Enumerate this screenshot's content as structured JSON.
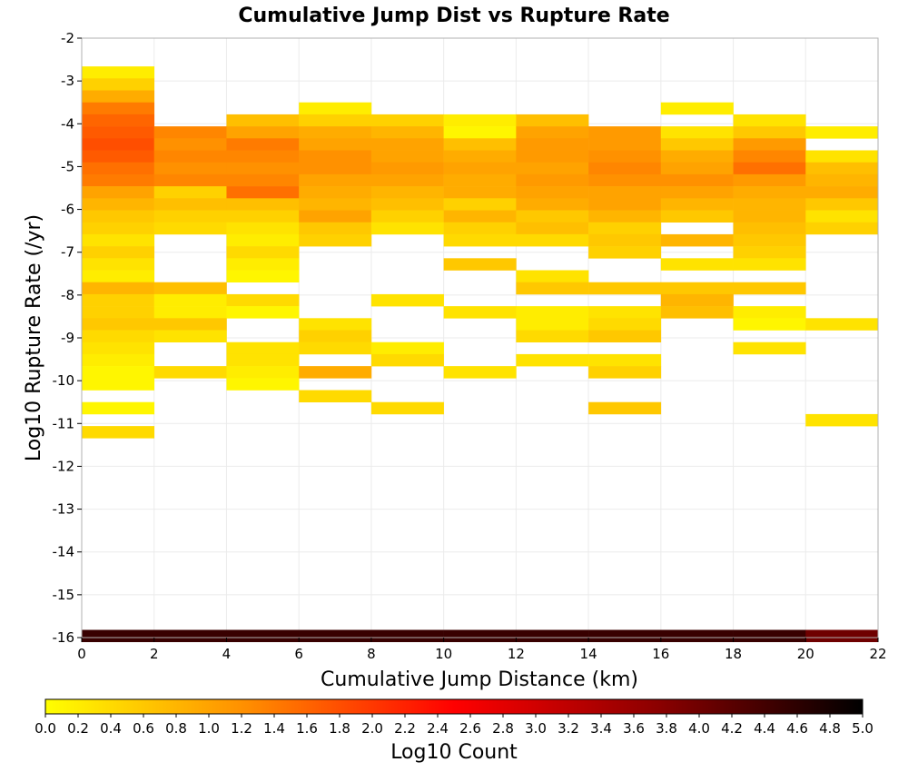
{
  "chart_data": {
    "type": "heatmap",
    "title": "Cumulative Jump Dist vs Rupture Rate",
    "xlabel": "Cumulative Jump Distance (km)",
    "ylabel": "Log10 Rupture Rate (/yr)",
    "xlim": [
      0,
      22
    ],
    "ylim": [
      -16,
      -2
    ],
    "xticks": [
      "0",
      "2",
      "4",
      "6",
      "8",
      "10",
      "12",
      "14",
      "16",
      "18",
      "20",
      "22"
    ],
    "yticks": [
      "-2",
      "-3",
      "-4",
      "-5",
      "-6",
      "-7",
      "-8",
      "-9",
      "-10",
      "-11",
      "-12",
      "-13",
      "-14",
      "-15",
      "-16"
    ],
    "grid": true,
    "x_bin_width": 2,
    "y_bin_height": 0.28,
    "colorbar": {
      "label": "Log10 Count",
      "range": [
        0,
        5
      ],
      "ticks": [
        "0.0",
        "0.2",
        "0.4",
        "0.6",
        "0.8",
        "1.0",
        "1.2",
        "1.4",
        "1.6",
        "1.8",
        "2.0",
        "2.2",
        "2.4",
        "2.6",
        "2.8",
        "3.0",
        "3.2",
        "3.4",
        "3.6",
        "3.8",
        "4.0",
        "4.2",
        "4.4",
        "4.6",
        "4.8",
        "5.0"
      ],
      "colors": [
        "#ffff00",
        "#ff8c00",
        "#ff0000",
        "#8b0000",
        "#000000"
      ]
    },
    "x_bins": [
      {
        "x": 0,
        "cells": [
          [
            -2.8,
            0.2
          ],
          [
            -3.08,
            0.5
          ],
          [
            -3.36,
            0.9
          ],
          [
            -3.64,
            1.4
          ],
          [
            -3.92,
            1.6
          ],
          [
            -4.2,
            1.7
          ],
          [
            -4.48,
            1.8
          ],
          [
            -4.76,
            1.7
          ],
          [
            -5.04,
            1.5
          ],
          [
            -5.32,
            1.4
          ],
          [
            -5.6,
            1.0
          ],
          [
            -5.88,
            0.8
          ],
          [
            -6.16,
            0.6
          ],
          [
            -6.44,
            0.5
          ],
          [
            -6.72,
            0.3
          ],
          [
            -7.0,
            0.5
          ],
          [
            -7.28,
            0.3
          ],
          [
            -7.56,
            0.2
          ],
          [
            -7.84,
            0.8
          ],
          [
            -8.12,
            0.5
          ],
          [
            -8.4,
            0.5
          ],
          [
            -8.68,
            0.6
          ],
          [
            -8.96,
            0.4
          ],
          [
            -9.24,
            0.3
          ],
          [
            -9.52,
            0.2
          ],
          [
            -9.8,
            0.1
          ],
          [
            -10.08,
            0.1
          ],
          [
            -10.64,
            0.1
          ],
          [
            -11.2,
            0.4
          ],
          [
            -15.96,
            4.5
          ]
        ]
      },
      {
        "x": 2,
        "cells": [
          [
            -4.2,
            1.3
          ],
          [
            -4.48,
            1.2
          ],
          [
            -4.76,
            1.3
          ],
          [
            -5.04,
            1.2
          ],
          [
            -5.32,
            1.3
          ],
          [
            -5.6,
            0.5
          ],
          [
            -5.88,
            0.7
          ],
          [
            -6.16,
            0.5
          ],
          [
            -6.44,
            0.4
          ],
          [
            -7.84,
            0.7
          ],
          [
            -8.12,
            0.2
          ],
          [
            -8.4,
            0.2
          ],
          [
            -8.68,
            0.6
          ],
          [
            -8.96,
            0.3
          ],
          [
            -9.8,
            0.4
          ],
          [
            -15.96,
            4.5
          ]
        ]
      },
      {
        "x": 4,
        "cells": [
          [
            -3.92,
            0.7
          ],
          [
            -4.2,
            1.0
          ],
          [
            -4.48,
            1.4
          ],
          [
            -4.76,
            1.3
          ],
          [
            -5.04,
            1.2
          ],
          [
            -5.32,
            1.3
          ],
          [
            -5.6,
            1.5
          ],
          [
            -5.88,
            0.7
          ],
          [
            -6.16,
            0.5
          ],
          [
            -6.44,
            0.3
          ],
          [
            -6.72,
            0.2
          ],
          [
            -7.0,
            0.4
          ],
          [
            -7.28,
            0.2
          ],
          [
            -7.56,
            0.1
          ],
          [
            -8.12,
            0.4
          ],
          [
            -8.4,
            0.1
          ],
          [
            -9.24,
            0.3
          ],
          [
            -9.52,
            0.3
          ],
          [
            -9.8,
            0.2
          ],
          [
            -10.08,
            0.1
          ],
          [
            -15.96,
            4.5
          ]
        ]
      },
      {
        "x": 6,
        "cells": [
          [
            -3.64,
            0.2
          ],
          [
            -3.92,
            0.5
          ],
          [
            -4.2,
            0.9
          ],
          [
            -4.48,
            1.0
          ],
          [
            -4.76,
            1.2
          ],
          [
            -5.04,
            1.2
          ],
          [
            -5.32,
            1.0
          ],
          [
            -5.6,
            0.9
          ],
          [
            -5.88,
            0.8
          ],
          [
            -6.16,
            1.0
          ],
          [
            -6.44,
            0.6
          ],
          [
            -6.72,
            0.5
          ],
          [
            -8.68,
            0.3
          ],
          [
            -8.96,
            0.5
          ],
          [
            -9.24,
            0.4
          ],
          [
            -9.8,
            0.9
          ],
          [
            -10.36,
            0.4
          ],
          [
            -15.96,
            4.5
          ]
        ]
      },
      {
        "x": 8,
        "cells": [
          [
            -3.92,
            0.5
          ],
          [
            -4.2,
            0.8
          ],
          [
            -4.48,
            1.0
          ],
          [
            -4.76,
            1.0
          ],
          [
            -5.04,
            1.1
          ],
          [
            -5.32,
            1.0
          ],
          [
            -5.6,
            0.8
          ],
          [
            -5.88,
            0.7
          ],
          [
            -6.16,
            0.5
          ],
          [
            -6.44,
            0.3
          ],
          [
            -8.12,
            0.3
          ],
          [
            -9.24,
            0.2
          ],
          [
            -9.52,
            0.4
          ],
          [
            -10.64,
            0.4
          ],
          [
            -15.96,
            4.5
          ]
        ]
      },
      {
        "x": 10,
        "cells": [
          [
            -3.92,
            0.2
          ],
          [
            -4.2,
            0.1
          ],
          [
            -4.48,
            0.7
          ],
          [
            -4.76,
            0.9
          ],
          [
            -5.04,
            1.0
          ],
          [
            -5.32,
            0.9
          ],
          [
            -5.6,
            0.9
          ],
          [
            -5.88,
            0.5
          ],
          [
            -6.16,
            0.8
          ],
          [
            -6.44,
            0.5
          ],
          [
            -6.72,
            0.4
          ],
          [
            -7.28,
            0.6
          ],
          [
            -8.4,
            0.3
          ],
          [
            -9.8,
            0.3
          ],
          [
            -15.96,
            4.5
          ]
        ]
      },
      {
        "x": 12,
        "cells": [
          [
            -3.92,
            0.7
          ],
          [
            -4.2,
            1.0
          ],
          [
            -4.48,
            1.1
          ],
          [
            -4.76,
            1.1
          ],
          [
            -5.04,
            1.0
          ],
          [
            -5.32,
            1.1
          ],
          [
            -5.6,
            1.0
          ],
          [
            -5.88,
            0.9
          ],
          [
            -6.16,
            0.6
          ],
          [
            -6.44,
            0.7
          ],
          [
            -6.72,
            0.4
          ],
          [
            -7.56,
            0.3
          ],
          [
            -7.84,
            0.6
          ],
          [
            -8.4,
            0.2
          ],
          [
            -8.68,
            0.2
          ],
          [
            -8.96,
            0.4
          ],
          [
            -9.52,
            0.3
          ],
          [
            -15.96,
            4.5
          ]
        ]
      },
      {
        "x": 14,
        "cells": [
          [
            -4.2,
            1.1
          ],
          [
            -4.48,
            1.1
          ],
          [
            -4.76,
            1.2
          ],
          [
            -5.04,
            1.3
          ],
          [
            -5.32,
            1.2
          ],
          [
            -5.6,
            1.0
          ],
          [
            -5.88,
            1.0
          ],
          [
            -6.16,
            0.8
          ],
          [
            -6.44,
            0.5
          ],
          [
            -6.72,
            0.6
          ],
          [
            -7.0,
            0.5
          ],
          [
            -7.84,
            0.6
          ],
          [
            -8.4,
            0.3
          ],
          [
            -8.68,
            0.4
          ],
          [
            -8.96,
            0.6
          ],
          [
            -9.52,
            0.3
          ],
          [
            -9.8,
            0.5
          ],
          [
            -10.64,
            0.6
          ],
          [
            -15.96,
            4.5
          ]
        ]
      },
      {
        "x": 16,
        "cells": [
          [
            -3.64,
            0.2
          ],
          [
            -4.2,
            0.3
          ],
          [
            -4.48,
            0.6
          ],
          [
            -4.76,
            0.9
          ],
          [
            -5.04,
            1.0
          ],
          [
            -5.32,
            1.2
          ],
          [
            -5.6,
            1.0
          ],
          [
            -5.88,
            0.8
          ],
          [
            -6.16,
            0.6
          ],
          [
            -6.72,
            0.8
          ],
          [
            -7.28,
            0.3
          ],
          [
            -7.84,
            0.6
          ],
          [
            -8.12,
            0.8
          ],
          [
            -8.4,
            0.7
          ],
          [
            -15.96,
            4.5
          ]
        ]
      },
      {
        "x": 18,
        "cells": [
          [
            -3.92,
            0.3
          ],
          [
            -4.2,
            0.6
          ],
          [
            -4.48,
            1.1
          ],
          [
            -4.76,
            1.3
          ],
          [
            -5.04,
            1.5
          ],
          [
            -5.32,
            1.1
          ],
          [
            -5.6,
            0.9
          ],
          [
            -5.88,
            0.8
          ],
          [
            -6.16,
            0.8
          ],
          [
            -6.44,
            0.7
          ],
          [
            -6.72,
            0.6
          ],
          [
            -7.0,
            0.5
          ],
          [
            -7.28,
            0.3
          ],
          [
            -7.84,
            0.6
          ],
          [
            -8.4,
            0.2
          ],
          [
            -8.68,
            0.1
          ],
          [
            -9.24,
            0.3
          ],
          [
            -15.96,
            4.5
          ]
        ]
      },
      {
        "x": 20,
        "cells": [
          [
            -4.2,
            0.2
          ],
          [
            -4.76,
            0.3
          ],
          [
            -5.04,
            0.7
          ],
          [
            -5.32,
            0.8
          ],
          [
            -5.6,
            0.9
          ],
          [
            -5.88,
            0.6
          ],
          [
            -6.16,
            0.3
          ],
          [
            -6.44,
            0.5
          ],
          [
            -8.68,
            0.3
          ],
          [
            -10.92,
            0.3
          ],
          [
            -15.96,
            4.0
          ]
        ]
      }
    ]
  }
}
